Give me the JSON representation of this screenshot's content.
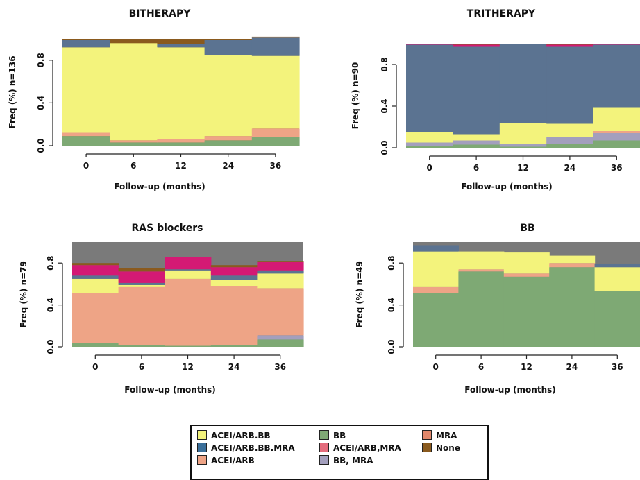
{
  "chart_data": [
    {
      "type": "area",
      "title": "BITHERAPY",
      "xlabel": "Follow-up (months)",
      "ylabel": "Freq (%) n=136",
      "categories": [
        "0",
        "6",
        "12",
        "24",
        "36"
      ],
      "yticks": [
        "0.0",
        "0.4",
        "0.8"
      ],
      "ylim": [
        0,
        1
      ],
      "series": [
        {
          "name": "BB",
          "values": [
            0.09,
            0.03,
            0.03,
            0.05,
            0.08
          ]
        },
        {
          "name": "BB, MRA",
          "values": [
            0.0,
            0.0,
            0.0,
            0.0,
            0.0
          ]
        },
        {
          "name": "ACEI/ARB",
          "values": [
            0.03,
            0.02,
            0.03,
            0.04,
            0.08
          ]
        },
        {
          "name": "ACEI/ARB.BB",
          "values": [
            0.8,
            0.91,
            0.86,
            0.76,
            0.68
          ]
        },
        {
          "name": "ACEI/ARB.BB.MRA",
          "values": [
            0.07,
            0.0,
            0.03,
            0.14,
            0.17
          ]
        },
        {
          "name": "ACEI/ARB,MRA",
          "values": [
            0.0,
            0.0,
            0.0,
            0.0,
            0.0
          ]
        },
        {
          "name": "MRA",
          "values": [
            0.0,
            0.0,
            0.0,
            0.0,
            0.0
          ]
        },
        {
          "name": "None",
          "values": [
            0.01,
            0.04,
            0.05,
            0.01,
            0.01
          ]
        }
      ]
    },
    {
      "type": "area",
      "title": "TRITHERAPY",
      "xlabel": "Follow-up (months)",
      "ylabel": "Freq (%) n=90",
      "categories": [
        "0",
        "6",
        "12",
        "24",
        "36"
      ],
      "yticks": [
        "0.0",
        "0.4",
        "0.8"
      ],
      "ylim": [
        0,
        1
      ],
      "series": [
        {
          "name": "BB",
          "values": [
            0.02,
            0.03,
            0.01,
            0.04,
            0.07
          ]
        },
        {
          "name": "BB, MRA",
          "values": [
            0.03,
            0.04,
            0.03,
            0.06,
            0.07
          ]
        },
        {
          "name": "ACEI/ARB",
          "values": [
            0.0,
            0.0,
            0.0,
            0.0,
            0.02
          ]
        },
        {
          "name": "ACEI/ARB.BB",
          "values": [
            0.1,
            0.06,
            0.2,
            0.13,
            0.23
          ]
        },
        {
          "name": "ACEI/ARB.BB.MRA",
          "values": [
            0.84,
            0.84,
            0.76,
            0.74,
            0.6
          ]
        },
        {
          "name": "ACEI/ARB,MRA",
          "values": [
            0.01,
            0.02,
            0.0,
            0.02,
            0.01
          ]
        },
        {
          "name": "MRA",
          "values": [
            0.0,
            0.0,
            0.0,
            0.0,
            0.0
          ]
        },
        {
          "name": "None",
          "values": [
            0.0,
            0.0,
            0.0,
            0.01,
            0.0
          ]
        }
      ]
    },
    {
      "type": "area",
      "title": "RAS blockers",
      "xlabel": "Follow-up (months)",
      "ylabel": "Freq (%) n=79",
      "categories": [
        "0",
        "6",
        "12",
        "24",
        "36"
      ],
      "yticks": [
        "0.0",
        "0.4",
        "0.8"
      ],
      "ylim": [
        0,
        1
      ],
      "series": [
        {
          "name": "BB",
          "values": [
            0.04,
            0.02,
            0.01,
            0.02,
            0.07
          ]
        },
        {
          "name": "BB, MRA",
          "values": [
            0.0,
            0.0,
            0.0,
            0.0,
            0.04
          ]
        },
        {
          "name": "ACEI/ARB",
          "values": [
            0.47,
            0.55,
            0.64,
            0.56,
            0.45
          ]
        },
        {
          "name": "ACEI/ARB.BB",
          "values": [
            0.14,
            0.02,
            0.08,
            0.06,
            0.14
          ]
        },
        {
          "name": "ACEI/ARB.BB.MRA",
          "values": [
            0.03,
            0.02,
            0.01,
            0.04,
            0.03
          ]
        },
        {
          "name": "ACEI/ARB,MRA",
          "values": [
            0.1,
            0.11,
            0.12,
            0.08,
            0.08
          ]
        },
        {
          "name": "MRA",
          "values": [
            0.0,
            0.0,
            0.0,
            0.0,
            0.0
          ]
        },
        {
          "name": "None",
          "values": [
            0.02,
            0.03,
            0.0,
            0.02,
            0.01
          ]
        }
      ],
      "residual": {
        "name": "",
        "color": "#7a7a7a"
      }
    },
    {
      "type": "area",
      "title": "BB",
      "xlabel": "Follow-up (months)",
      "ylabel": "Freq (%) n=49",
      "categories": [
        "0",
        "6",
        "12",
        "24",
        "36"
      ],
      "yticks": [
        "0.0",
        "0.4",
        "0.8"
      ],
      "ylim": [
        0,
        1
      ],
      "series": [
        {
          "name": "BB",
          "values": [
            0.51,
            0.72,
            0.67,
            0.76,
            0.53
          ]
        },
        {
          "name": "BB, MRA",
          "values": [
            0.0,
            0.0,
            0.0,
            0.0,
            0.0
          ]
        },
        {
          "name": "ACEI/ARB",
          "values": [
            0.06,
            0.02,
            0.03,
            0.04,
            0.0
          ]
        },
        {
          "name": "ACEI/ARB.BB",
          "values": [
            0.34,
            0.17,
            0.2,
            0.07,
            0.23
          ]
        },
        {
          "name": "ACEI/ARB.BB.MRA",
          "values": [
            0.06,
            0.0,
            0.0,
            0.0,
            0.03
          ]
        },
        {
          "name": "ACEI/ARB,MRA",
          "values": [
            0.0,
            0.0,
            0.0,
            0.0,
            0.0
          ]
        },
        {
          "name": "MRA",
          "values": [
            0.0,
            0.0,
            0.0,
            0.0,
            0.0
          ]
        },
        {
          "name": "None",
          "values": [
            0.0,
            0.0,
            0.0,
            0.0,
            0.0
          ]
        }
      ],
      "residual": {
        "name": "",
        "color": "#7a7a7a"
      }
    }
  ],
  "legend": {
    "entries": [
      {
        "label": "ACEI/ARB.BB",
        "color": "#f3f37c"
      },
      {
        "label": "ACEI/ARB.BB.MRA",
        "color": "#3a6f9a"
      },
      {
        "label": "ACEI/ARB",
        "color": "#eea486"
      },
      {
        "label": "BB",
        "color": "#7ea974"
      },
      {
        "label": "ACEI/ARB,MRA",
        "color": "#e46b7c"
      },
      {
        "label": "BB, MRA",
        "color": "#a39fbd"
      },
      {
        "label": "MRA",
        "color": "#e0876b"
      },
      {
        "label": "None",
        "color": "#8a5a1e"
      }
    ]
  },
  "colors": {
    "BB": "#7ea974",
    "BB, MRA": "#a39fbd",
    "ACEI/ARB": "#eea486",
    "ACEI/ARB.BB": "#f3f37c",
    "ACEI/ARB.BB.MRA": "#5b7391",
    "ACEI/ARB,MRA": "#d41974",
    "MRA": "#e0876b",
    "None": "#8a5a1e"
  }
}
